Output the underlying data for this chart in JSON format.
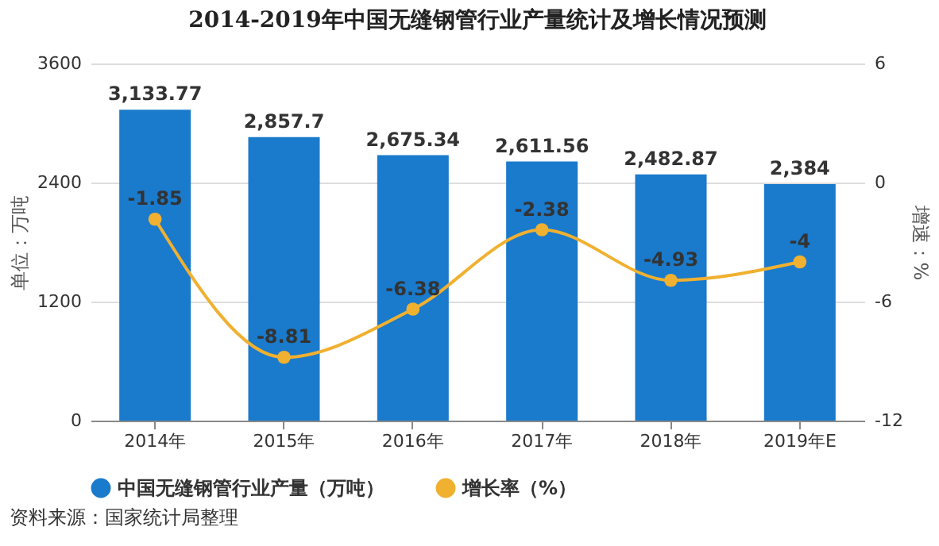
{
  "chart_data": {
    "type": "bar",
    "title": "2014-2019年中国无缝钢管行业产量统计及增长情况预测",
    "categories": [
      "2014年",
      "2015年",
      "2016年",
      "2017年",
      "2018年",
      "2019年E"
    ],
    "series": [
      {
        "name": "中国无缝钢管行业产量（万吨）",
        "color": "#1a7acb",
        "values": [
          3133.77,
          2857.7,
          2675.34,
          2611.56,
          2482.87,
          2384
        ],
        "value_labels": [
          "3,133.77",
          "2,857.7",
          "2,675.34",
          "2,611.56",
          "2,482.87",
          "2,384"
        ]
      },
      {
        "name": "增长率（%）",
        "type": "line",
        "axis": "y2",
        "color": "#f0b030",
        "marker": "circle",
        "values": [
          -1.85,
          -8.81,
          -6.38,
          -2.38,
          -4.93,
          -4
        ],
        "value_labels": [
          "-1.85",
          "-8.81",
          "-6.38",
          "-2.38",
          "-4.93",
          "-4"
        ]
      }
    ],
    "ylabel": "单位：万吨",
    "y2label": "增速：%",
    "ylim": [
      0,
      3600
    ],
    "yticks": [
      0,
      1200,
      2400,
      3600
    ],
    "y2lim": [
      -12,
      6
    ],
    "y2ticks": [
      -12,
      -6,
      0,
      6
    ],
    "grid": "y",
    "legend": "bottom",
    "annotations": [
      "资料来源：国家统计局整理"
    ]
  }
}
